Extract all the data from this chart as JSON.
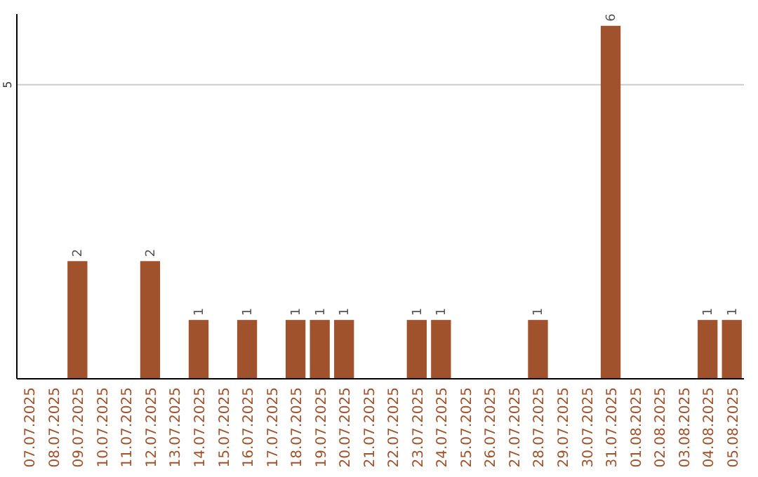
{
  "chart_data": {
    "type": "bar",
    "categories": [
      "07.07.2025",
      "08.07.2025",
      "09.07.2025",
      "10.07.2025",
      "11.07.2025",
      "12.07.2025",
      "13.07.2025",
      "14.07.2025",
      "15.07.2025",
      "16.07.2025",
      "17.07.2025",
      "18.07.2025",
      "19.07.2025",
      "20.07.2025",
      "21.07.2025",
      "22.07.2025",
      "23.07.2025",
      "24.07.2025",
      "25.07.2025",
      "26.07.2025",
      "27.07.2025",
      "28.07.2025",
      "29.07.2025",
      "30.07.2025",
      "31.07.2025",
      "01.08.2025",
      "02.08.2025",
      "03.08.2025",
      "04.08.2025",
      "05.08.2025"
    ],
    "values": [
      0,
      0,
      2,
      0,
      0,
      2,
      0,
      1,
      0,
      1,
      0,
      1,
      1,
      1,
      0,
      0,
      1,
      1,
      0,
      0,
      0,
      1,
      0,
      0,
      6,
      0,
      0,
      0,
      1,
      1
    ],
    "value_labels": [
      null,
      null,
      "2",
      null,
      null,
      "2",
      null,
      "1",
      null,
      "1",
      null,
      "1",
      "1",
      "1",
      null,
      null,
      "1",
      "1",
      null,
      null,
      null,
      "1",
      null,
      null,
      "6",
      null,
      null,
      null,
      "1",
      "1"
    ],
    "color": "#a0522d",
    "ylim": [
      0,
      6.2
    ],
    "yticks": [
      5
    ],
    "grid": "y"
  }
}
